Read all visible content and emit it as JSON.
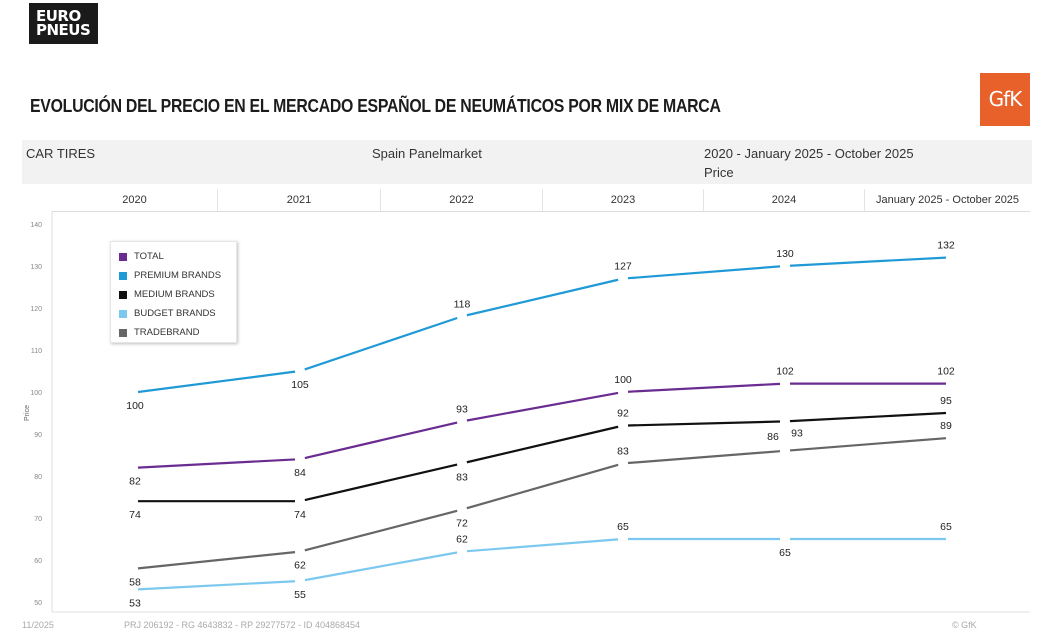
{
  "brand": {
    "logo_line1": "EURO",
    "logo_line2": "PNEUS",
    "partner_logo": "GfK"
  },
  "title": "EVOLUCIÓN DEL PRECIO EN EL MERCADO ESPAÑOL DE NEUMÁTICOS POR MIX DE MARCA",
  "info_bar": {
    "category": "CAR TIRES",
    "market": "Spain Panelmarket",
    "period": "2020 - January 2025 - October 2025",
    "measure": "Price"
  },
  "footer": {
    "date": "11/2025",
    "ids": "PRJ 206192 - RG 4643832 - RP 29277572 - ID 404868454",
    "copyright": "© GfK"
  },
  "chart_data": {
    "type": "line",
    "title": "",
    "xlabel": "",
    "ylabel": "Price",
    "categories": [
      "2020",
      "2021",
      "2022",
      "2023",
      "2024",
      "January 2025 - October 2025"
    ],
    "ylim": [
      50,
      140
    ],
    "yticks": [
      140,
      130,
      120,
      110,
      100,
      90,
      80,
      70,
      60,
      50
    ],
    "grid": false,
    "legend_position": "top-left",
    "series": [
      {
        "name": "TOTAL",
        "color": "#6a2c91",
        "values": [
          82,
          84,
          93,
          100,
          102,
          102
        ],
        "label_pos": [
          "below",
          "below",
          "above",
          "above",
          "above",
          "above"
        ]
      },
      {
        "name": "PREMIUM BRANDS",
        "color": "#1f9ad6",
        "values": [
          100,
          105,
          118,
          127,
          130,
          132
        ],
        "label_pos": [
          "below",
          "below",
          "above",
          "above",
          "above",
          "above"
        ]
      },
      {
        "name": "MEDIUM BRANDS",
        "color": "#111111",
        "values": [
          74,
          74,
          83,
          92,
          93,
          95
        ],
        "label_pos": [
          "below",
          "below",
          "below",
          "above",
          "below-right",
          "above"
        ]
      },
      {
        "name": "BUDGET BRANDS",
        "color": "#7cc8ef",
        "values": [
          53,
          55,
          62,
          65,
          65,
          65
        ],
        "label_pos": [
          "below",
          "below",
          "above",
          "above",
          "below",
          "above"
        ]
      },
      {
        "name": "TRADEBRAND",
        "color": "#666666",
        "values": [
          58,
          62,
          72,
          83,
          86,
          89
        ],
        "label_pos": [
          "below",
          "below",
          "below",
          "above",
          "above-left",
          "above"
        ]
      }
    ]
  }
}
